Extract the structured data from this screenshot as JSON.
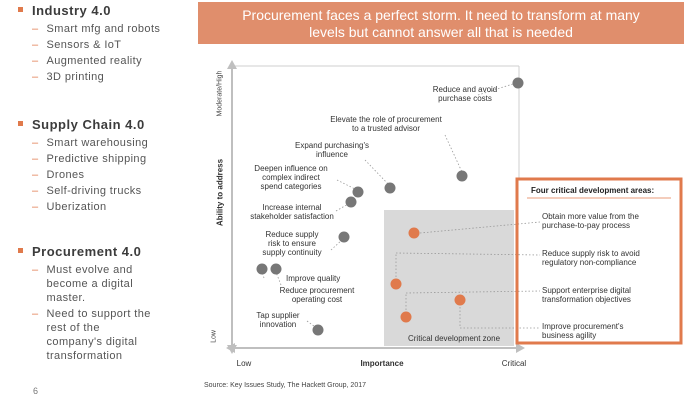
{
  "banner": {
    "line1": "Procurement faces a perfect storm.  It need to transform at many",
    "line2": "levels but cannot answer all that is needed"
  },
  "sections": [
    {
      "title": "Industry 4.0",
      "items": [
        "Smart mfg and robots",
        "Sensors & IoT",
        "Augmented reality",
        "3D printing"
      ]
    },
    {
      "title": "Supply Chain 4.0",
      "items": [
        "Smart warehousing",
        "Predictive shipping",
        "Drones",
        "Self-driving trucks",
        "Uberization"
      ]
    },
    {
      "title": "Procurement 4.0",
      "items": [
        [
          "Must evolve and",
          "become a digital",
          "master."
        ],
        [
          "Need to support the",
          "rest of the",
          "company's digital",
          "transformation"
        ]
      ]
    }
  ],
  "page_number": "6",
  "chart": {
    "y_axis_title": "Ability to address",
    "y_top": "Moderate/High",
    "y_bottom": "Low",
    "x_axis_title": "Importance",
    "x_left": "Low",
    "x_right": "Critical",
    "zone_label": "Critical development zone",
    "source": "Source: Key Issues Study, The Hackett Group, 2017",
    "points": [
      {
        "lines": [
          "Reduce and avoid",
          "purchase costs"
        ]
      },
      {
        "lines": [
          "Elevate the role of procurement",
          "to a trusted advisor"
        ]
      },
      {
        "lines": [
          "Expand purchasing's",
          "influence"
        ]
      },
      {
        "lines": [
          "Deepen influence on",
          "complex indirect",
          "spend categories"
        ]
      },
      {
        "lines": [
          "Increase internal",
          "stakeholder satisfaction"
        ]
      },
      {
        "lines": [
          "Reduce supply",
          "risk to ensure",
          "supply continuity"
        ]
      },
      {
        "lines": [
          "Improve quality"
        ]
      },
      {
        "lines": [
          "Reduce procurement",
          "operating cost"
        ]
      },
      {
        "lines": [
          "Tap supplier",
          "innovation"
        ]
      }
    ],
    "panel": {
      "title": "Four critical development areas:",
      "items": [
        [
          "Obtain more value from the",
          "purchase-to-pay process"
        ],
        [
          "Reduce supply risk to avoid",
          "regulatory non-compliance"
        ],
        [
          "Support enterprise digital",
          "transformation objectives"
        ],
        [
          "Improve procurement's",
          "business agility"
        ]
      ]
    }
  }
}
